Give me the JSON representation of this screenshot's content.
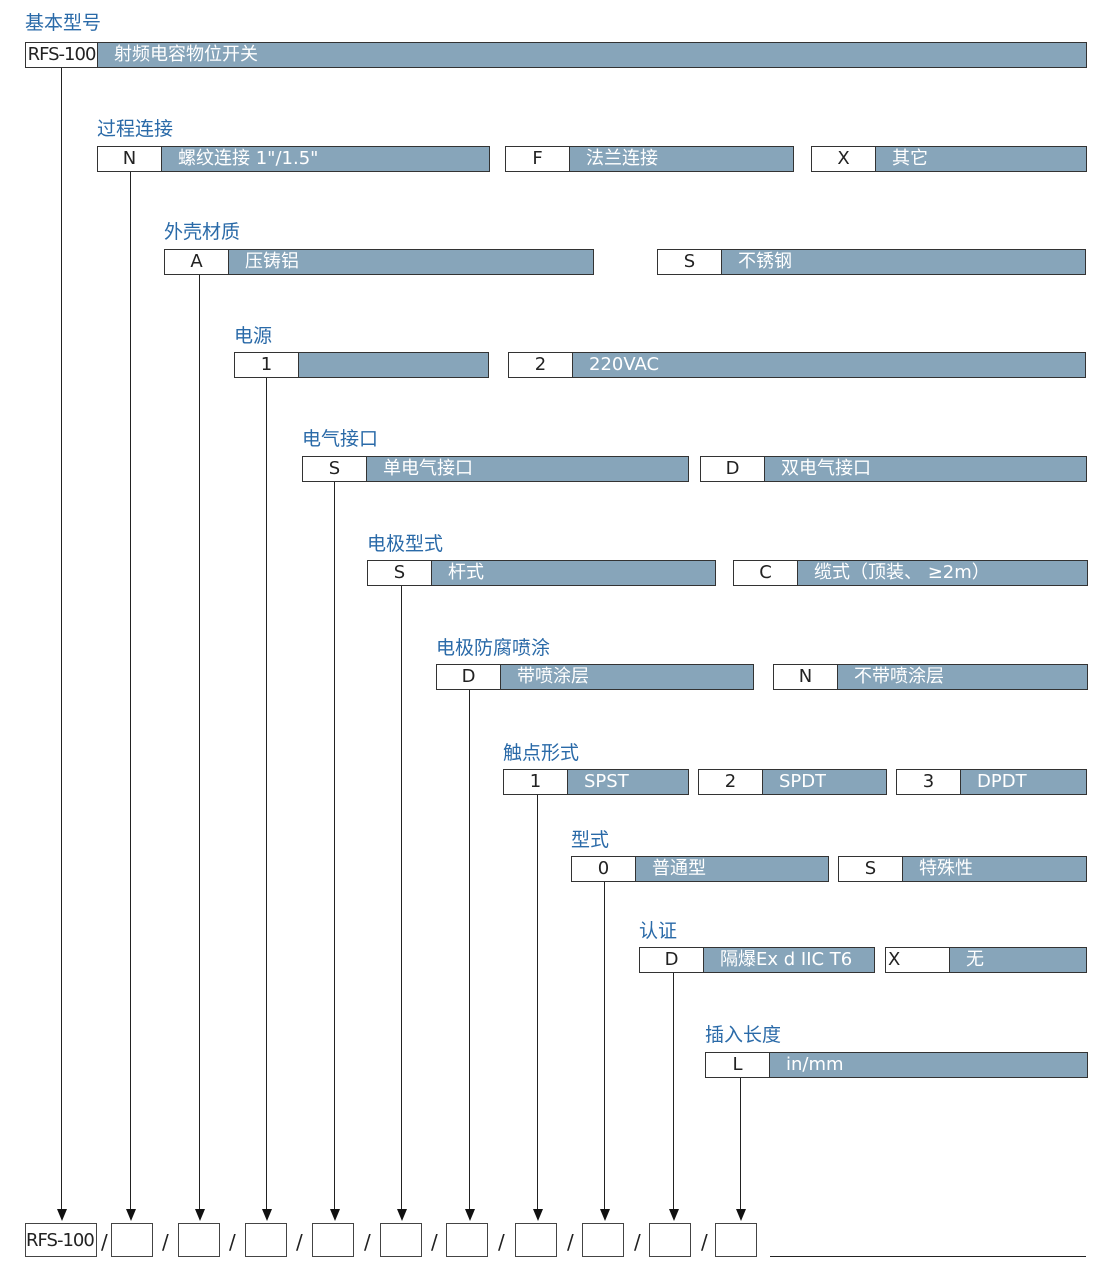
{
  "base": {
    "title": "基本型号",
    "code": "RFS-100",
    "desc": "射频电容物位开关"
  },
  "sections": [
    {
      "title": "过程连接",
      "options": [
        {
          "code": "N",
          "desc": "螺纹连接 1\"/1.5\""
        },
        {
          "code": "F",
          "desc": "法兰连接"
        },
        {
          "code": "X",
          "desc": "其它"
        }
      ]
    },
    {
      "title": "外壳材质",
      "options": [
        {
          "code": "A",
          "desc": "压铸铝"
        },
        {
          "code": "S",
          "desc": "不锈钢"
        }
      ]
    },
    {
      "title": "电源",
      "options": [
        {
          "code": "1",
          "desc": ""
        },
        {
          "code": "2",
          "desc": "220VAC"
        }
      ]
    },
    {
      "title": "电气接口",
      "options": [
        {
          "code": "S",
          "desc": "单电气接口"
        },
        {
          "code": "D",
          "desc": "双电气接口"
        }
      ]
    },
    {
      "title": "电极型式",
      "options": [
        {
          "code": "S",
          "desc": "杆式"
        },
        {
          "code": "C",
          "desc": "缆式（顶装、 ≥2m）"
        }
      ]
    },
    {
      "title": "电极防腐喷涂",
      "options": [
        {
          "code": "D",
          "desc": "带喷涂层"
        },
        {
          "code": "N",
          "desc": "不带喷涂层"
        }
      ]
    },
    {
      "title": "触点形式",
      "options": [
        {
          "code": "1",
          "desc": "SPST"
        },
        {
          "code": "2",
          "desc": "SPDT"
        },
        {
          "code": "3",
          "desc": "DPDT"
        }
      ]
    },
    {
      "title": "型式",
      "options": [
        {
          "code": "0",
          "desc": "普通型"
        },
        {
          "code": "S",
          "desc": "特殊性"
        }
      ]
    },
    {
      "title": "认证",
      "options": [
        {
          "code": "D",
          "desc": "隔爆Ex d IIC T6"
        },
        {
          "code": "X",
          "desc": "无"
        }
      ]
    },
    {
      "title": "插入长度",
      "options": [
        {
          "code": "L",
          "desc": "in/mm"
        }
      ]
    }
  ],
  "order_code": {
    "prefix": "RFS-100",
    "separator": "/"
  },
  "colors": {
    "title": "#2a6aa8",
    "bar": "#87a5ba"
  }
}
